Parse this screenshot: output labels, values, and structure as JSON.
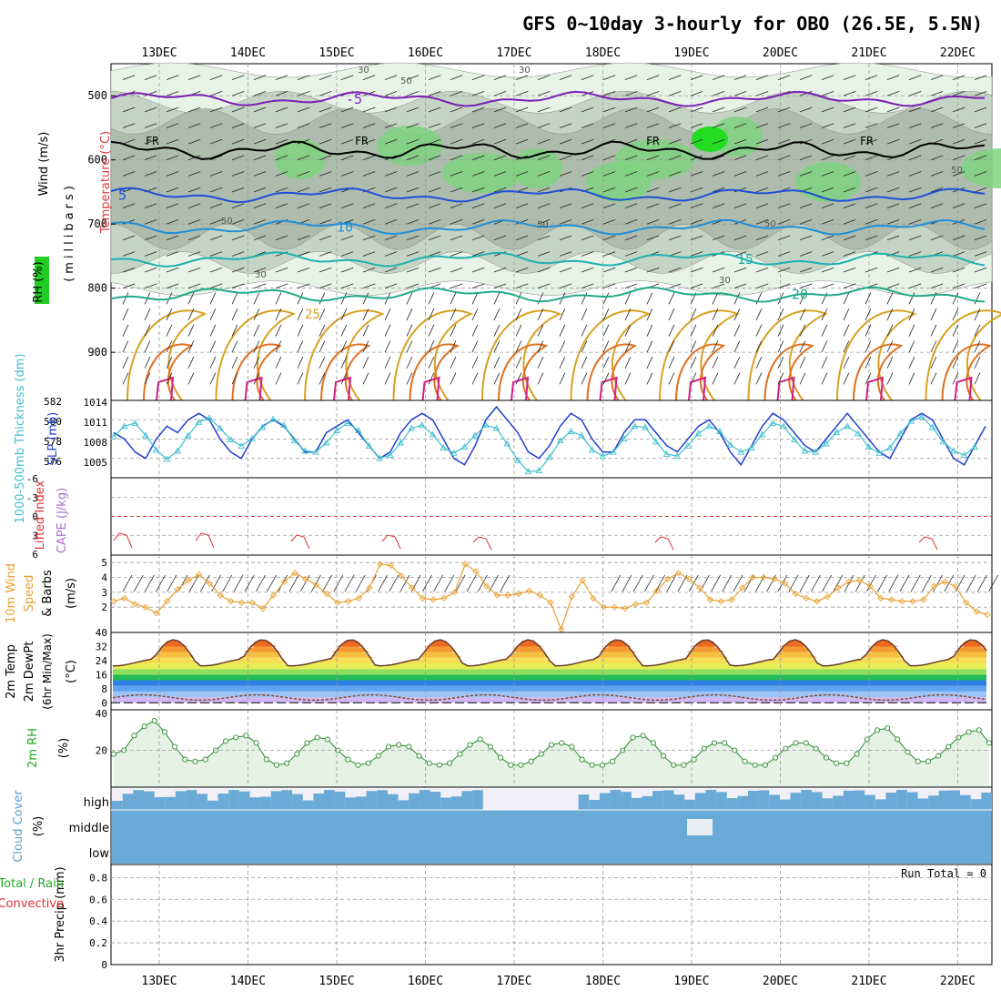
{
  "title": "GFS 0~10day 3-hourly for OBO (26.5E, 5.5N)",
  "chart_data": {
    "type": "meteogram",
    "dates": [
      "13DEC",
      "14DEC",
      "15DEC",
      "16DEC",
      "17DEC",
      "18DEC",
      "19DEC",
      "20DEC",
      "21DEC",
      "22DEC"
    ],
    "colors": {
      "grid": "#9a9a9a",
      "rh_light": "#e8f3e8",
      "rh_mid": "#c5d5c5",
      "rh_dark": "#aebcae",
      "rh_green": "#7fd27f",
      "rh_bright": "#22dd22",
      "temp_purple": "#7a1fb5",
      "temp_blue": "#1f4fd6",
      "temp_lightblue": "#1f8fd6",
      "temp_teal": "#1fb0b0",
      "temp_green": "#22aa88",
      "temp_orange": "#d9a020",
      "temp_red": "#e07020",
      "temp_magenta": "#d0208a",
      "slp": "#1f3fd0",
      "thick": "#3fbfcf",
      "lifted": "#e03030",
      "wind10": "#e8a030",
      "cloud": "#6aaad6"
    },
    "upper": {
      "labels": {
        "wind": "Wind (m/s)",
        "temp": "Temperature (°C)",
        "rh": "RH (%)",
        "pressure": "(millibars)"
      },
      "y_ticks": [
        "500",
        "600",
        "700",
        "800",
        "900"
      ],
      "isotherms": [
        {
          "label": "-5",
          "p": 505,
          "color": "temp_purple"
        },
        {
          "label": "5",
          "p": 655,
          "color": "temp_blue"
        },
        {
          "label": "10",
          "p": 705,
          "color": "temp_lightblue"
        },
        {
          "label": "15",
          "p": 755,
          "color": "temp_teal"
        },
        {
          "label": "20",
          "p": 810,
          "color": "temp_green"
        },
        {
          "label": "25",
          "p": 850,
          "color": "temp_orange"
        }
      ],
      "freezing_label": "FR",
      "rh_labels": [
        "30",
        "50"
      ]
    },
    "slp_panel": {
      "labels": {
        "thick": "1000-500mb Thickness (dm)",
        "slp": "SLP (mb)"
      },
      "left_ticks": [
        "582",
        "580",
        "578",
        "576"
      ],
      "right_ticks": [
        "1014",
        "1011",
        "1008",
        "1005"
      ],
      "slp_range": [
        1002,
        1014
      ],
      "thick_range": [
        574.5,
        582
      ],
      "slp": [
        1009,
        1008,
        1006,
        1005,
        1008,
        1010,
        1009,
        1011,
        1012,
        1011,
        1008,
        1006,
        1005,
        1008,
        1010,
        1011,
        1010,
        1008,
        1006,
        1006,
        1009,
        1010,
        1011,
        1009,
        1007,
        1005,
        1006,
        1009,
        1011,
        1012,
        1011,
        1008,
        1005,
        1004,
        1007,
        1011,
        1013,
        1011,
        1009,
        1006,
        1005,
        1007,
        1010,
        1012,
        1011,
        1008,
        1006,
        1006,
        1009,
        1011,
        1011,
        1009,
        1007,
        1006,
        1008,
        1010,
        1011,
        1009,
        1006,
        1004,
        1007,
        1010,
        1012,
        1011,
        1009,
        1007,
        1006,
        1008,
        1010,
        1012,
        1010,
        1008,
        1006,
        1005,
        1008,
        1011,
        1012,
        1011,
        1008,
        1005,
        1004,
        1007,
        1010
      ],
      "thick": [
        578.5,
        579.5,
        579.8,
        578.6,
        577.2,
        576.3,
        577.1,
        578.6,
        579.9,
        580.3,
        579.3,
        578.2,
        577.6,
        578.3,
        579.4,
        580.2,
        579.6,
        578.1,
        577.1,
        577.0,
        577.9,
        579.1,
        579.8,
        579.1,
        577.6,
        576.4,
        576.7,
        577.9,
        579.3,
        579.6,
        578.7,
        577.4,
        576.9,
        577.5,
        578.6,
        579.6,
        579.3,
        577.8,
        576.2,
        575.1,
        575.2,
        576.5,
        578.1,
        579.0,
        578.6,
        577.2,
        576.6,
        577.0,
        578.3,
        579.5,
        579.4,
        578.0,
        576.8,
        576.6,
        577.6,
        578.8,
        579.5,
        579.0,
        577.7,
        577.0,
        577.4,
        578.7,
        579.8,
        579.5,
        578.2,
        577.1,
        577.0,
        577.8,
        578.9,
        579.5,
        578.8,
        577.5,
        576.9,
        577.4,
        578.8,
        580.0,
        580.4,
        579.4,
        578.0,
        577.1,
        576.7,
        577.5
      ]
    },
    "cape_panel": {
      "labels": {
        "lifted": "Lifted Index",
        "cape": "CAPE (J/kg)"
      },
      "y_ticks": [
        "-6",
        "-3",
        "0",
        "3",
        "6"
      ]
    },
    "wind_panel": {
      "labels": {
        "main": "10m Wind",
        "speed": "Speed",
        "barbs": "& Barbs",
        "unit": "(m/s)"
      },
      "y_ticks": [
        "5",
        "4",
        "3",
        "2"
      ],
      "speeds": [
        2.4,
        2.6,
        2.2,
        2.0,
        1.6,
        2.4,
        3.2,
        3.8,
        4.2,
        3.6,
        2.8,
        2.4,
        2.3,
        2.3,
        1.9,
        2.8,
        3.7,
        4.3,
        3.9,
        3.5,
        2.9,
        2.3,
        2.4,
        2.6,
        3.3,
        4.9,
        4.8,
        4.1,
        3.3,
        2.6,
        2.5,
        2.6,
        3.0,
        4.9,
        4.4,
        3.4,
        2.8,
        2.8,
        2.9,
        3.1,
        2.8,
        2.3,
        0.5,
        2.7,
        3.8,
        2.6,
        2.0,
        2.0,
        1.9,
        2.2,
        2.3,
        3.1,
        3.9,
        4.3,
        3.9,
        3.3,
        2.5,
        2.4,
        2.5,
        3.3,
        4.0,
        4.0,
        3.9,
        3.6,
        2.9,
        2.6,
        2.4,
        2.7,
        3.3,
        3.7,
        3.8,
        3.4,
        2.6,
        2.5,
        2.4,
        2.4,
        2.5,
        3.4,
        3.7,
        3.4,
        2.3,
        1.7,
        1.5
      ]
    },
    "temp_panel": {
      "labels": {
        "temp": "2m Temp",
        "dew": "2m DewPt",
        "minmax": "(6hr Min/Max)",
        "unit": "(°C)"
      },
      "y_ticks": [
        "40",
        "32",
        "24",
        "16",
        "8",
        "0"
      ],
      "bands": [
        "#cfb8f5",
        "#9ec4f5",
        "#5fa5f0",
        "#2d7fe6",
        "#22bb55",
        "#8fdd5a",
        "#e6f055",
        "#f5de55",
        "#f5c040",
        "#f59a30",
        "#ed6a20",
        "#d83a18"
      ]
    },
    "rh_panel": {
      "labels": {
        "main": "2m RH",
        "unit": "(%)"
      },
      "y_ticks": [
        "40",
        "20"
      ],
      "values": [
        18,
        20,
        28,
        33,
        36,
        30,
        22,
        15,
        14,
        15,
        20,
        25,
        27,
        28,
        24,
        15,
        12,
        13,
        18,
        24,
        27,
        26,
        20,
        15,
        12,
        13,
        17,
        22,
        23,
        22,
        17,
        13,
        12,
        13,
        18,
        23,
        26,
        22,
        16,
        12,
        12,
        14,
        18,
        23,
        24,
        22,
        15,
        12,
        12,
        14,
        20,
        27,
        28,
        24,
        17,
        12,
        12,
        15,
        21,
        24,
        24,
        20,
        14,
        12,
        12,
        16,
        21,
        24,
        24,
        21,
        16,
        13,
        13,
        18,
        26,
        31,
        32,
        26,
        19,
        14,
        14,
        17,
        22,
        27,
        30,
        31,
        24
      ]
    },
    "cloud_panel": {
      "labels": {
        "main": "Cloud Cover",
        "unit": "(%)",
        "high": "high",
        "middle": "middle",
        "low": "low"
      }
    },
    "precip_panel": {
      "labels": {
        "main": "3hr Precip (mm)",
        "total": "Total / Rain",
        "conv": "Convective",
        "run_total": "Run Total = 0"
      },
      "y_ticks": [
        "0.8",
        "0.6",
        "0.4",
        "0.2",
        "0"
      ]
    }
  }
}
